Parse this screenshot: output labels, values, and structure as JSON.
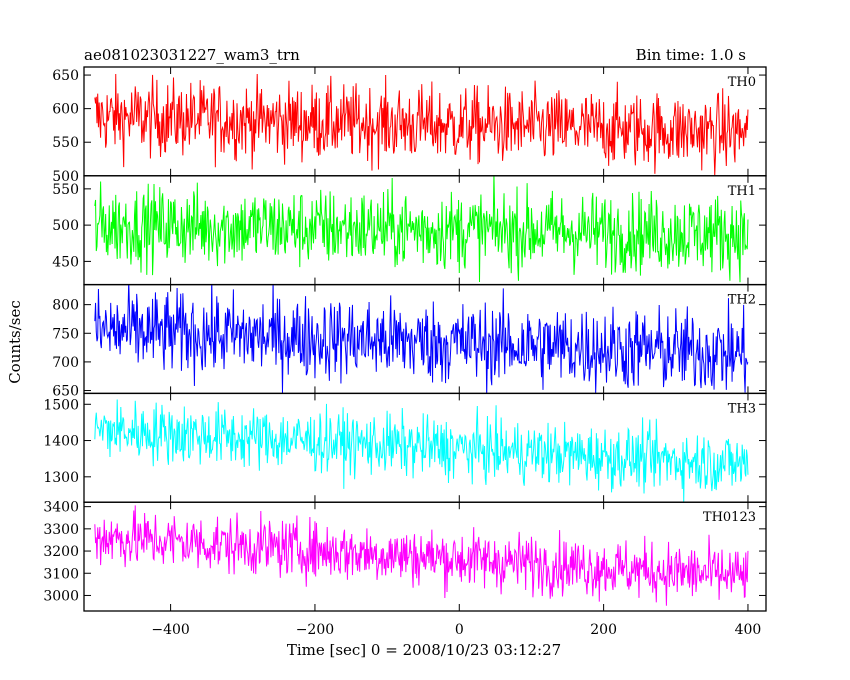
{
  "header": {
    "title": "ae081023031227_wam3_trn",
    "bin_time": "Bin time: 1.0 s"
  },
  "axes": {
    "xlabel": "Time [sec] 0 = 2008/10/23 03:12:27",
    "ylabel": "Counts/sec"
  },
  "chart_data": {
    "type": "line",
    "title": "ae081023031227_wam3_trn",
    "subtitle": "Bin time: 1.0 s",
    "xlabel": "Time [sec] 0 = 2008/10/23 03:12:27",
    "ylabel": "Counts/sec",
    "xlim": [
      -520,
      425
    ],
    "x_ticks": [
      -400,
      -200,
      0,
      200,
      400
    ],
    "x_data_range": [
      -505,
      400
    ],
    "bin_time_s": 1.0,
    "grid": false,
    "panels": [
      {
        "name": "TH0",
        "color": "#ff0000",
        "ylim": [
          500,
          662
        ],
        "y_ticks": [
          500,
          550,
          600,
          650
        ],
        "start_mean": 588,
        "end_mean": 565,
        "noise": 28
      },
      {
        "name": "TH1",
        "color": "#00ff00",
        "ylim": [
          418,
          568
        ],
        "y_ticks": [
          450,
          500,
          550
        ],
        "start_mean": 500,
        "end_mean": 488,
        "noise": 27
      },
      {
        "name": "TH2",
        "color": "#0000ff",
        "ylim": [
          645,
          835
        ],
        "y_ticks": [
          650,
          700,
          750,
          800
        ],
        "start_mean": 755,
        "end_mean": 715,
        "noise": 36
      },
      {
        "name": "TH3",
        "color": "#00ffff",
        "ylim": [
          1230,
          1530
        ],
        "y_ticks": [
          1300,
          1400,
          1500
        ],
        "start_mean": 1430,
        "end_mean": 1335,
        "noise": 42
      },
      {
        "name": "TH0123",
        "color": "#ff00ff",
        "ylim": [
          2930,
          3420
        ],
        "y_ticks": [
          3000,
          3100,
          3200,
          3300,
          3400
        ],
        "start_mean": 3265,
        "end_mean": 3085,
        "noise": 65
      }
    ]
  }
}
